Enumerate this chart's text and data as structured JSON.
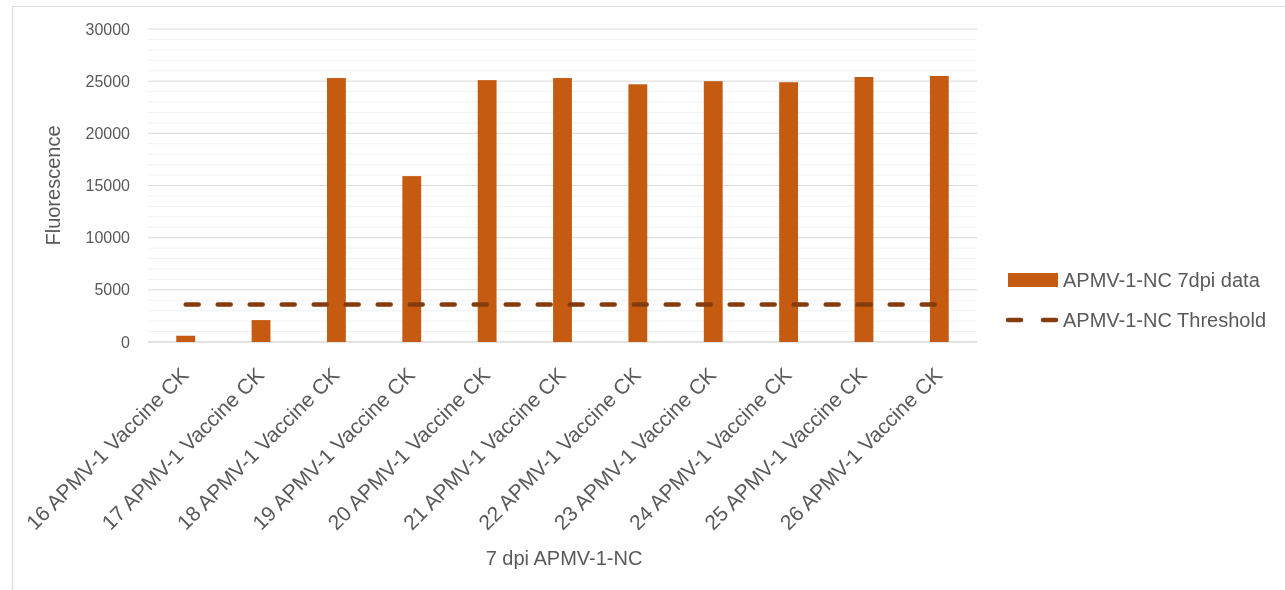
{
  "chart_data": {
    "type": "bar",
    "categories": [
      "16 APMV-1 Vaccine CK",
      "17 APMV-1 Vaccine CK",
      "18 APMV-1 Vaccine CK",
      "19 APMV-1 Vaccine CK",
      "20 APMV-1 Vaccine CK",
      "21 APMV-1 Vaccine CK",
      "22 APMV-1 Vaccine CK",
      "23 APMV-1 Vaccine CK",
      "24 APMV-1 Vaccine CK",
      "25 APMV-1 Vaccine CK",
      "26 APMV-1 Vaccine CK"
    ],
    "xlabel": "7 dpi APMV-1-NC",
    "ylabel": "Fluorescence",
    "ylim": [
      0,
      30000
    ],
    "yticks": [
      0,
      {
        "value": 1000,
        "label": null
      },
      {
        "value": 2000,
        "label": null
      },
      {
        "value": 3000,
        "label": null
      },
      {
        "value": 4000,
        "label": null
      },
      5000,
      {
        "value": 6000,
        "label": null
      },
      {
        "value": 7000,
        "label": null
      },
      {
        "value": 8000,
        "label": null
      },
      {
        "value": 9000,
        "label": null
      },
      10000,
      {
        "value": 11000,
        "label": null
      },
      {
        "value": 12000,
        "label": null
      },
      {
        "value": 13000,
        "label": null
      },
      {
        "value": 14000,
        "label": null
      },
      15000,
      {
        "value": 16000,
        "label": null
      },
      {
        "value": 17000,
        "label": null
      },
      {
        "value": 18000,
        "label": null
      },
      {
        "value": 19000,
        "label": null
      },
      20000,
      {
        "value": 21000,
        "label": null
      },
      {
        "value": 22000,
        "label": null
      },
      {
        "value": 23000,
        "label": null
      },
      {
        "value": 24000,
        "label": null
      },
      25000,
      {
        "value": 26000,
        "label": null
      },
      {
        "value": 27000,
        "label": null
      },
      {
        "value": 28000,
        "label": null
      },
      {
        "value": 29000,
        "label": null
      },
      30000
    ],
    "grid": true,
    "legend": "right",
    "series": [
      {
        "name": "APMV-1-NC 7dpi data",
        "color": "#c55a11",
        "values": [
          600,
          2100,
          25300,
          15900,
          25100,
          25300,
          24700,
          25000,
          24900,
          25400,
          25500
        ]
      },
      {
        "name": "APMV-1-NC Threshold",
        "type": "line",
        "color": "#843c0c",
        "line_style": "dashed",
        "values": [
          3600,
          3600,
          3600,
          3600,
          3600,
          3600,
          3600,
          3600,
          3600,
          3600,
          3600
        ]
      }
    ]
  }
}
